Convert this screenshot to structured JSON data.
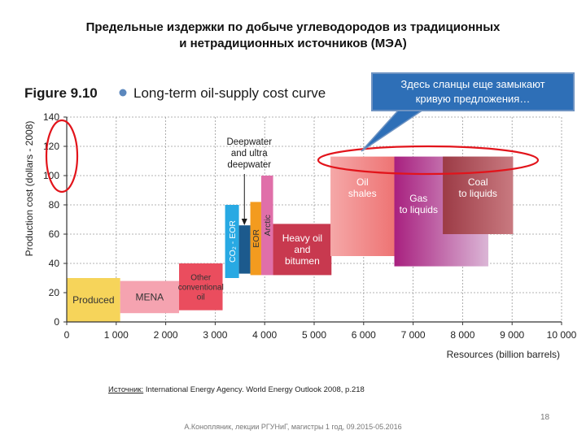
{
  "slide": {
    "title_line1": "Предельные издержки по добыче углеводородов из традиционных",
    "title_line2": "и нетрадиционных источников (МЭА)",
    "callout_line1": "Здесь сланцы еще замыкают",
    "callout_line2": "кривую предложения…",
    "source_label": "Источник:",
    "source_text": " International Energy Agency. World Energy Outlook 2008, p.218",
    "footer": "А.Конопляник, лекции РГУНиГ, магистры 1 год, 09.2015-05.2016",
    "page_number": "18"
  },
  "chart_data": {
    "type": "bar",
    "figure_label": "Figure 9.10",
    "title": "Long-term oil-supply cost curve",
    "xlabel": "Resources (billion barrels)",
    "ylabel": "Production cost (dollars - 2008)",
    "xlim": [
      0,
      10000
    ],
    "ylim": [
      0,
      140
    ],
    "grid": true,
    "x_ticks": [
      "0",
      "1 000",
      "2 000",
      "3 000",
      "4 000",
      "5 000",
      "6 000",
      "7 000",
      "8 000",
      "9 000",
      "10 000"
    ],
    "y_ticks": [
      "0",
      "20",
      "40",
      "60",
      "80",
      "100",
      "120",
      "140"
    ],
    "annotation": "Deepwater and ultra deepwater",
    "blocks": [
      {
        "name": "Produced",
        "x0": 0,
        "x1": 1080,
        "y0": 0,
        "y1": 30,
        "color": "#f6d45a",
        "text_color": "#333333",
        "label": "Produced"
      },
      {
        "name": "MENA",
        "x0": 1080,
        "x1": 2270,
        "y0": 6,
        "y1": 28,
        "color": "#f5a3b0",
        "text_color": "#333333",
        "label": "MENA"
      },
      {
        "name": "Other conventional oil",
        "x0": 2270,
        "x1": 3150,
        "y0": 8,
        "y1": 40,
        "color": "#ea4d5e",
        "text_color": "#333333",
        "label": "Other\nconventional\noil"
      },
      {
        "name": "CO2 - EOR",
        "x0": 3200,
        "x1": 3480,
        "y0": 30,
        "y1": 80,
        "color": "#28a9e3",
        "text_color": "#ffffff",
        "label": "CO₂ - EOR",
        "vertical": true
      },
      {
        "name": "Deepwater",
        "x0": 3480,
        "x1": 3710,
        "y0": 33,
        "y1": 66,
        "color": "#1c5a8d",
        "text_color": "#ffffff",
        "label": ""
      },
      {
        "name": "EOR",
        "x0": 3710,
        "x1": 3930,
        "y0": 32,
        "y1": 82,
        "color": "#f39b1f",
        "text_color": "#333333",
        "label": "EOR",
        "vertical": true
      },
      {
        "name": "Arctic",
        "x0": 3930,
        "x1": 4170,
        "y0": 32,
        "y1": 100,
        "color": "#e06fa9",
        "text_color": "#333333",
        "label": "Arctic",
        "vertical": true
      },
      {
        "name": "Heavy oil and bitumen",
        "x0": 4170,
        "x1": 5350,
        "y0": 32,
        "y1": 67,
        "color": "#c8394f",
        "text_color": "#ffffff",
        "label": "Heavy oil\nand\nbitumen"
      },
      {
        "name": "Oil shales",
        "x0": 5330,
        "x1": 6620,
        "y0": 45,
        "y1": 113,
        "color": "#f5a8a8",
        "text_color": "#ffffff",
        "label": "Oil\nshales",
        "gradient": "#ee7474"
      },
      {
        "name": "Gas to liquids",
        "x0": 6620,
        "x1": 8520,
        "y0": 38,
        "y1": 113,
        "color": "#a8207f",
        "text_color": "#ffffff",
        "label": "Gas\nto liquids",
        "gradient": "#dbb6d6"
      },
      {
        "name": "Coal to liquids",
        "x0": 7600,
        "x1": 9020,
        "y0": 60,
        "y1": 113,
        "color": "#9c3b46",
        "text_color": "#ffffff",
        "label": "Coal\nto liquids",
        "gradient": "#c97a80"
      }
    ]
  }
}
